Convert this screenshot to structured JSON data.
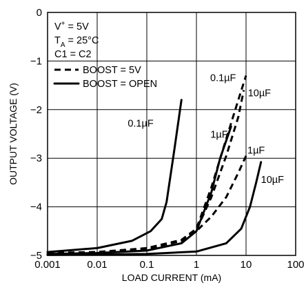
{
  "chart_data": {
    "type": "line",
    "xlabel": "LOAD CURRENT (mA)",
    "ylabel": "OUTPUT VOLTAGE (V)",
    "xscale": "log",
    "xlim": [
      0.001,
      100
    ],
    "ylim": [
      -5,
      0
    ],
    "grid": true,
    "x_ticks": [
      "0.001",
      "0.01",
      "0.1",
      "1",
      "10",
      "100"
    ],
    "y_ticks": [
      "0",
      "−1",
      "−2",
      "−3",
      "−4",
      "−5"
    ],
    "conditions": [
      {
        "base": "V",
        "sup": "+",
        "sub": "",
        "rest": " = 5V"
      },
      {
        "base": "T",
        "sup": "",
        "sub": "A",
        "rest": " = 25°C"
      },
      {
        "base": "C1 = C2",
        "sup": "",
        "sub": "",
        "rest": ""
      }
    ],
    "legend_position": "top-left",
    "legend": [
      {
        "label": "BOOST = 5V",
        "style": "dashed"
      },
      {
        "label": "BOOST = OPEN",
        "style": "solid"
      }
    ],
    "series": [
      {
        "label": "0.1µF",
        "style": "solid",
        "points": [
          [
            0.001,
            -4.93
          ],
          [
            0.01,
            -4.85
          ],
          [
            0.05,
            -4.7
          ],
          [
            0.12,
            -4.5
          ],
          [
            0.2,
            -4.25
          ],
          [
            0.25,
            -3.9
          ],
          [
            0.35,
            -2.9
          ],
          [
            0.5,
            -1.8
          ]
        ]
      },
      {
        "label": "1µF",
        "style": "solid",
        "points": [
          [
            0.001,
            -4.97
          ],
          [
            0.01,
            -4.95
          ],
          [
            0.1,
            -4.9
          ],
          [
            0.5,
            -4.75
          ],
          [
            1,
            -4.5
          ],
          [
            2,
            -3.7
          ],
          [
            3,
            -3.0
          ],
          [
            5,
            -2.35
          ]
        ]
      },
      {
        "label": "10µF",
        "style": "solid",
        "points": [
          [
            0.001,
            -4.99
          ],
          [
            0.01,
            -4.98
          ],
          [
            0.1,
            -4.97
          ],
          [
            1,
            -4.92
          ],
          [
            4,
            -4.75
          ],
          [
            8,
            -4.45
          ],
          [
            12,
            -4.0
          ],
          [
            16,
            -3.5
          ],
          [
            20,
            -3.08
          ]
        ]
      },
      {
        "label": "0.1µF",
        "style": "dashed",
        "points": [
          [
            0.001,
            -4.95
          ],
          [
            0.01,
            -4.93
          ],
          [
            0.1,
            -4.85
          ],
          [
            0.5,
            -4.68
          ],
          [
            1,
            -4.45
          ],
          [
            2,
            -3.6
          ],
          [
            4,
            -2.6
          ],
          [
            7,
            -1.8
          ],
          [
            10,
            -1.3
          ]
        ]
      },
      {
        "label": "10µF",
        "style": "dashed",
        "points": [
          [
            0.001,
            -4.96
          ],
          [
            0.01,
            -4.94
          ],
          [
            0.1,
            -4.86
          ],
          [
            0.5,
            -4.7
          ],
          [
            1,
            -4.48
          ],
          [
            2,
            -3.8
          ],
          [
            4,
            -2.95
          ],
          [
            7,
            -2.15
          ],
          [
            9,
            -1.6
          ]
        ]
      },
      {
        "label": "1µF",
        "style": "dashed",
        "points": [
          [
            0.001,
            -4.95
          ],
          [
            0.01,
            -4.93
          ],
          [
            0.1,
            -4.87
          ],
          [
            0.5,
            -4.7
          ],
          [
            1,
            -4.5
          ],
          [
            2,
            -4.2
          ],
          [
            4,
            -3.8
          ],
          [
            7,
            -3.3
          ],
          [
            10,
            -2.95
          ]
        ]
      }
    ]
  }
}
